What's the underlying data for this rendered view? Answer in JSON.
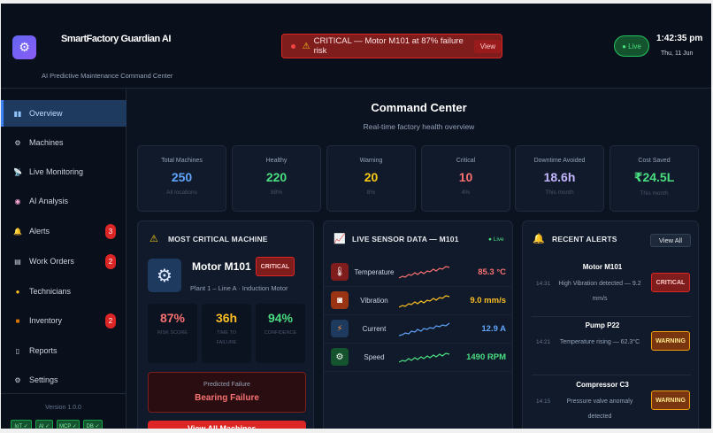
{
  "header": {
    "logo_icon": "gear-icon",
    "title": "SmartFactory Guardian AI",
    "subtitle": "AI Predictive Maintenance Command Center",
    "alert_banner": {
      "text": "CRITICAL — Motor M101 at 87% failure risk",
      "action": "View"
    },
    "live_label": "● Live",
    "time": "1:42:35 pm",
    "date": "Thu, 11 Jun"
  },
  "sidebar": {
    "items": [
      {
        "label": "Overview",
        "icon": "chart-icon",
        "active": true
      },
      {
        "label": "Machines",
        "icon": "gear-icon"
      },
      {
        "label": "Live Monitoring",
        "icon": "satellite-icon"
      },
      {
        "label": "AI Analysis",
        "icon": "brain-icon"
      },
      {
        "label": "Alerts",
        "icon": "bell-icon",
        "badge": "3"
      },
      {
        "label": "Work Orders",
        "icon": "clipboard-icon",
        "badge": "2"
      },
      {
        "label": "Technicians",
        "icon": "person-icon"
      },
      {
        "label": "Inventory",
        "icon": "box-icon",
        "badge": "2"
      },
      {
        "label": "Reports",
        "icon": "document-icon"
      },
      {
        "label": "Settings",
        "icon": "settings-icon"
      }
    ],
    "version": "Version 1.0.0",
    "tags": [
      "IoT ✓",
      "AI ✓",
      "MCP ✓",
      "DB ✓"
    ]
  },
  "main": {
    "title": "Command Center",
    "subtitle": "Real-time factory health overview",
    "stats": [
      {
        "label": "Total Machines",
        "value": "250",
        "sub": "All locations",
        "color": "#60a5fa"
      },
      {
        "label": "Healthy",
        "value": "220",
        "sub": "88%",
        "color": "#4ade80"
      },
      {
        "label": "Warning",
        "value": "20",
        "sub": "8%",
        "color": "#facc15"
      },
      {
        "label": "Critical",
        "value": "10",
        "sub": "4%",
        "color": "#f87171"
      },
      {
        "label": "Downtime Avoided",
        "value": "18.6h",
        "sub": "This month",
        "color": "#c4b5fd"
      },
      {
        "label": "Cost Saved",
        "value": "₹24.5L",
        "sub": "This month",
        "color": "#4ade80"
      }
    ]
  },
  "critical_machine": {
    "title": "MOST CRITICAL MACHINE",
    "name": "Motor M101",
    "status": "CRITICAL",
    "location": "Plant 1 – Line A · Induction Motor",
    "metrics": [
      {
        "value": "87%",
        "label": "RISK SCORE",
        "color": "#f87171"
      },
      {
        "value": "36h",
        "label": "TIME TO FAILURE",
        "color": "#fbbf24"
      },
      {
        "value": "94%",
        "label": "CONFIDENCE",
        "color": "#4ade80"
      }
    ],
    "prediction_label": "Predicted Failure",
    "prediction_value": "Bearing Failure",
    "button": "View All Machines →"
  },
  "sensors": {
    "title": "LIVE SENSOR DATA — M101",
    "live": "● Live",
    "rows": [
      {
        "name": "Temperature",
        "value": "85.3 °C",
        "color": "#f87171",
        "icon": "thermometer-icon",
        "icon_bg": "#7f1d1d"
      },
      {
        "name": "Vibration",
        "value": "9.0 mm/s",
        "color": "#fbbf24",
        "icon": "vibration-icon",
        "icon_bg": "#9a3412"
      },
      {
        "name": "Current",
        "value": "12.9 A",
        "color": "#60a5fa",
        "icon": "lightning-icon",
        "icon_bg": "#1e3a5f"
      },
      {
        "name": "Speed",
        "value": "1490 RPM",
        "color": "#4ade80",
        "icon": "gear-icon",
        "icon_bg": "#14532d"
      }
    ]
  },
  "alerts": {
    "title": "RECENT ALERTS",
    "view_all": "View All",
    "items": [
      {
        "machine": "Motor M101",
        "time": "14:31",
        "message": "High Vibration detected — 9.2 mm/s",
        "level": "CRITICAL"
      },
      {
        "machine": "Pump P22",
        "time": "14:21",
        "message": "Temperature rising — 62.3°C",
        "level": "WARNING"
      },
      {
        "machine": "Compressor C3",
        "time": "14:15",
        "message": "Pressure valve anomaly detected",
        "level": "WARNING"
      }
    ]
  }
}
